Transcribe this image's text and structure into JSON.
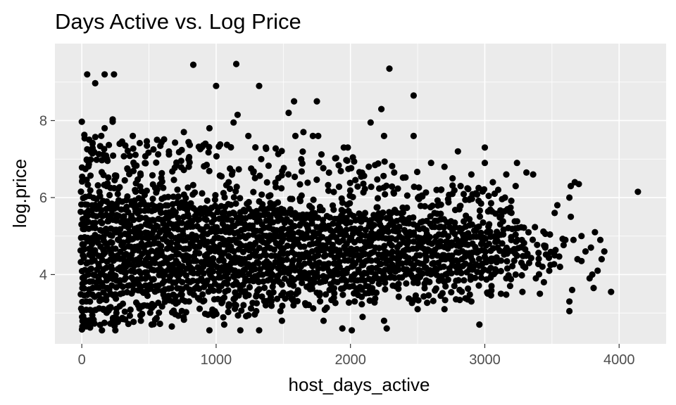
{
  "chart_data": {
    "type": "scatter",
    "title": "Days Active vs. Log Price",
    "xlabel": "host_days_active",
    "ylabel": "log.price",
    "xlim": [
      -200,
      4350
    ],
    "ylim": [
      2.2,
      10.0
    ],
    "x_ticks": [
      0,
      1000,
      2000,
      3000,
      4000
    ],
    "x_tick_labels": [
      "0",
      "1000",
      "2000",
      "3000",
      "4000"
    ],
    "y_ticks": [
      4,
      6,
      8
    ],
    "y_tick_labels": [
      "4",
      "6",
      "8"
    ],
    "grid": true,
    "legend": "none",
    "colors": {
      "panel": "#ebebeb",
      "grid": "#ffffff",
      "point": "#000000",
      "tick_text": "#4d4d4d"
    },
    "dense_region": {
      "x_range": [
        0,
        3600
      ],
      "y_band_center": 4.7,
      "y_band_half_width_at_0": 1.6,
      "y_band_half_width_at_3600": 0.6,
      "note_estimate": "thousands of overlapping points; approximated"
    },
    "points": [
      [
        830,
        9.45
      ],
      [
        1150,
        9.47
      ],
      [
        40,
        9.2
      ],
      [
        170,
        9.2
      ],
      [
        240,
        9.2
      ],
      [
        100,
        8.97
      ],
      [
        1000,
        8.9
      ],
      [
        1320,
        8.9
      ],
      [
        2290,
        9.35
      ],
      [
        2470,
        8.65
      ],
      [
        1580,
        8.5
      ],
      [
        1750,
        8.5
      ],
      [
        1540,
        8.2
      ],
      [
        2230,
        8.3
      ],
      [
        1160,
        8.15
      ],
      [
        1130,
        7.95
      ],
      [
        2150,
        7.95
      ],
      [
        2470,
        7.6
      ],
      [
        2250,
        7.6
      ],
      [
        1240,
        7.6
      ],
      [
        0,
        7.97
      ],
      [
        230,
        8.03
      ],
      [
        230,
        7.97
      ],
      [
        760,
        7.7
      ],
      [
        950,
        7.8
      ],
      [
        1760,
        7.6
      ],
      [
        1720,
        7.6
      ],
      [
        1650,
        7.7
      ],
      [
        1590,
        7.6
      ],
      [
        3000,
        7.3
      ],
      [
        2800,
        7.2
      ],
      [
        1950,
        7.3
      ],
      [
        1980,
        7.3
      ],
      [
        170,
        7.8
      ],
      [
        380,
        7.6
      ],
      [
        80,
        7.4
      ],
      [
        560,
        7.5
      ],
      [
        920,
        7.4
      ],
      [
        1370,
        7.3
      ],
      [
        3240,
        6.9
      ],
      [
        3310,
        6.65
      ],
      [
        3360,
        6.6
      ],
      [
        3540,
        5.8
      ],
      [
        3520,
        5.6
      ],
      [
        3630,
        6.0
      ],
      [
        3640,
        6.3
      ],
      [
        3670,
        6.4
      ],
      [
        3700,
        6.35
      ],
      [
        3640,
        5.5
      ],
      [
        3720,
        5.0
      ],
      [
        3750,
        4.6
      ],
      [
        3790,
        4.7
      ],
      [
        3820,
        5.1
      ],
      [
        3860,
        4.9
      ],
      [
        3890,
        4.6
      ],
      [
        3870,
        4.4
      ],
      [
        3840,
        4.1
      ],
      [
        3800,
        4.0
      ],
      [
        3780,
        3.9
      ],
      [
        3810,
        3.65
      ],
      [
        3940,
        3.55
      ],
      [
        3720,
        4.35
      ],
      [
        3690,
        4.4
      ],
      [
        3650,
        3.6
      ],
      [
        3630,
        3.3
      ],
      [
        3630,
        3.05
      ],
      [
        3560,
        4.2
      ],
      [
        3520,
        4.5
      ],
      [
        3480,
        4.1
      ],
      [
        3440,
        3.8
      ],
      [
        3410,
        3.5
      ],
      [
        3380,
        3.9
      ],
      [
        3450,
        4.7
      ],
      [
        3600,
        4.9
      ],
      [
        3660,
        4.9
      ],
      [
        4140,
        6.15
      ],
      [
        2960,
        2.7
      ],
      [
        1940,
        2.6
      ],
      [
        2270,
        2.6
      ],
      [
        2250,
        2.8
      ],
      [
        1320,
        2.55
      ],
      [
        1180,
        2.55
      ],
      [
        950,
        2.55
      ],
      [
        670,
        2.65
      ],
      [
        520,
        2.7
      ],
      [
        250,
        2.55
      ],
      [
        150,
        2.55
      ],
      [
        50,
        2.8
      ],
      [
        1490,
        2.8
      ],
      [
        2010,
        2.55
      ],
      [
        440,
        2.8
      ],
      [
        1060,
        2.7
      ],
      [
        1800,
        2.8
      ],
      [
        2090,
        2.9
      ],
      [
        2500,
        3.1
      ],
      [
        2700,
        3.1
      ],
      [
        2900,
        3.3
      ],
      [
        3120,
        3.5
      ],
      [
        3050,
        3.7
      ],
      [
        3280,
        3.55
      ],
      [
        3160,
        3.9
      ],
      [
        3230,
        4.0
      ],
      [
        3330,
        4.3
      ],
      [
        3150,
        6.0
      ],
      [
        3100,
        6.2
      ],
      [
        2900,
        6.6
      ],
      [
        2820,
        6.3
      ],
      [
        2700,
        6.8
      ],
      [
        2600,
        6.9
      ],
      [
        2760,
        6.5
      ],
      [
        3060,
        6.4
      ],
      [
        3160,
        6.6
      ],
      [
        3000,
        6.9
      ],
      [
        3230,
        6.3
      ]
    ]
  }
}
